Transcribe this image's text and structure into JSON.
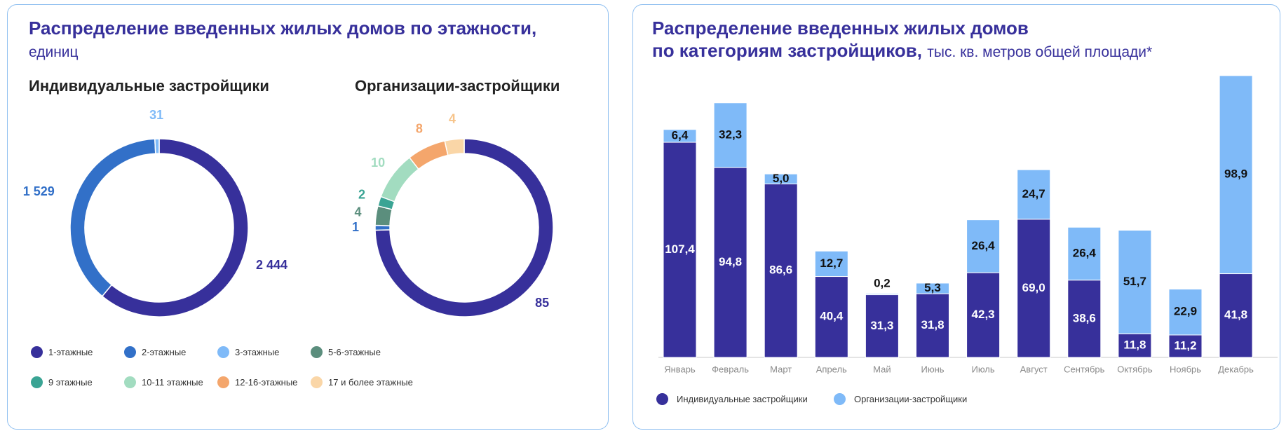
{
  "left_panel": {
    "title": "Распределение введенных жилых домов по этажности,",
    "subtitle": "единиц",
    "donut_left_title": "Индивидуальные застройщики",
    "donut_right_title": "Организации-застройщики",
    "legend": [
      {
        "label": "1-этажные",
        "color": "#37309b"
      },
      {
        "label": "2-этажные",
        "color": "#3270c8"
      },
      {
        "label": "3-этажные",
        "color": "#7fbaf8"
      },
      {
        "label": "5-6-этажные",
        "color": "#5b8e7d"
      },
      {
        "label": "9 этажные",
        "color": "#3aa494"
      },
      {
        "label": "10-11 этажные",
        "color": "#a2dcc0"
      },
      {
        "label": "12-16-этажные",
        "color": "#f4a66c"
      },
      {
        "label": "17 и более этажные",
        "color": "#fad6a7"
      }
    ]
  },
  "right_panel": {
    "title_line1": "Распределение введенных жилых домов",
    "title_line2": "по категориям застройщиков,",
    "subtitle": "тыс. кв. метров общей площади*",
    "legend": [
      {
        "label": "Индивидуальные застройщики",
        "color": "#37309b"
      },
      {
        "label": "Организации-застройщики",
        "color": "#7fbaf8"
      }
    ]
  },
  "chart_data": [
    {
      "type": "pie",
      "variant": "donut",
      "title": "Индивидуальные застройщики",
      "slices": [
        {
          "category": "1-этажные",
          "value": 2444,
          "label": "2 444",
          "color": "#37309b"
        },
        {
          "category": "2-этажные",
          "value": 1529,
          "label": "1 529",
          "color": "#3270c8"
        },
        {
          "category": "3-этажные",
          "value": 31,
          "label": "31",
          "color": "#7fbaf8"
        }
      ]
    },
    {
      "type": "pie",
      "variant": "donut",
      "title": "Организации-застройщики",
      "slices": [
        {
          "category": "1-этажные",
          "value": 85,
          "label": "85",
          "color": "#37309b"
        },
        {
          "category": "2-этажные",
          "value": 1,
          "label": "1",
          "color": "#3270c8"
        },
        {
          "category": "5-6-этажные",
          "value": 4,
          "label": "4",
          "color": "#5b8e7d"
        },
        {
          "category": "9 этажные",
          "value": 2,
          "label": "2",
          "color": "#3aa494"
        },
        {
          "category": "10-11 этажные",
          "value": 10,
          "label": "10",
          "color": "#a2dcc0"
        },
        {
          "category": "12-16-этажные",
          "value": 8,
          "label": "8",
          "color": "#f4a66c"
        },
        {
          "category": "17 и более этажные",
          "value": 4,
          "label": "4",
          "color": "#fad6a7"
        }
      ]
    },
    {
      "type": "bar",
      "stacked": true,
      "title": "Распределение введенных жилых домов по категориям застройщиков, тыс. кв. метров общей площади*",
      "categories": [
        "Январь",
        "Февраль",
        "Март",
        "Апрель",
        "Май",
        "Июнь",
        "Июль",
        "Август",
        "Сентябрь",
        "Октябрь",
        "Ноябрь",
        "Декабрь"
      ],
      "series": [
        {
          "name": "Индивидуальные застройщики",
          "color": "#37309b",
          "values": [
            107.4,
            94.8,
            86.6,
            40.4,
            31.3,
            31.8,
            42.3,
            69.0,
            38.6,
            11.8,
            11.2,
            41.8
          ],
          "labels": [
            "107,4",
            "94,8",
            "86,6",
            "40,4",
            "31,3",
            "31,8",
            "42,3",
            "69,0",
            "38,6",
            "11,8",
            "11,2",
            "41,8"
          ]
        },
        {
          "name": "Организации-застройщики",
          "color": "#7fbaf8",
          "values": [
            6.4,
            32.3,
            5.0,
            12.7,
            0.2,
            5.3,
            26.4,
            24.7,
            26.4,
            51.7,
            22.9,
            98.9
          ],
          "labels": [
            "6,4",
            "32,3",
            "5,0",
            "12,7",
            "0,2",
            "5,3",
            "26,4",
            "24,7",
            "26,4",
            "51,7",
            "22,9",
            "98,9"
          ]
        }
      ],
      "ylim": [
        0,
        141
      ]
    }
  ]
}
